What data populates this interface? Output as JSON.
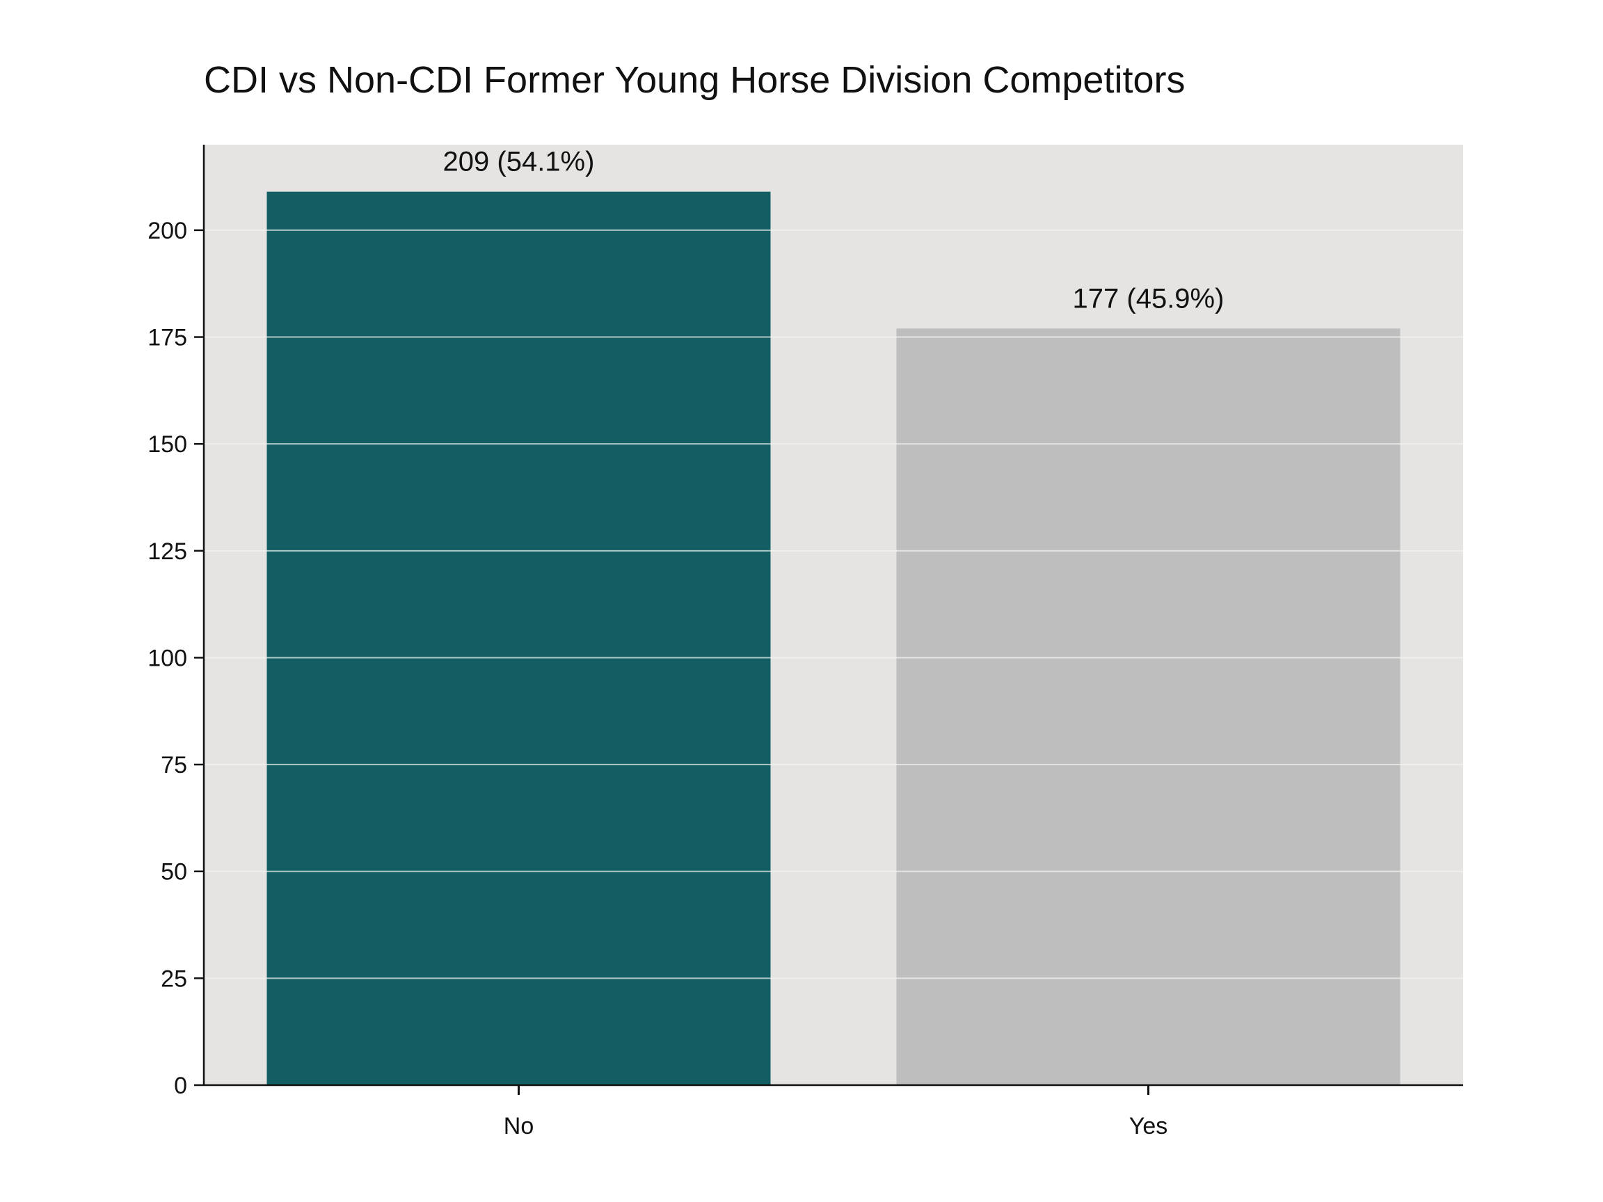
{
  "chart_data": {
    "type": "bar",
    "title": "CDI vs Non-CDI Former Young Horse Division Competitors",
    "xlabel": "",
    "ylabel": "",
    "categories": [
      "No",
      "Yes"
    ],
    "values": [
      209,
      177
    ],
    "data_labels": [
      "209 (54.1%)",
      "177 (45.9%)"
    ],
    "bar_colors": [
      "#135e63",
      "#bebebe"
    ],
    "ylim": [
      0,
      220
    ],
    "yticks": [
      0,
      25,
      50,
      75,
      100,
      125,
      150,
      175,
      200
    ],
    "grid": true,
    "plot_background": "#e5e4e2",
    "grid_color": "#f4f3f1",
    "axis_color": "#111111"
  }
}
